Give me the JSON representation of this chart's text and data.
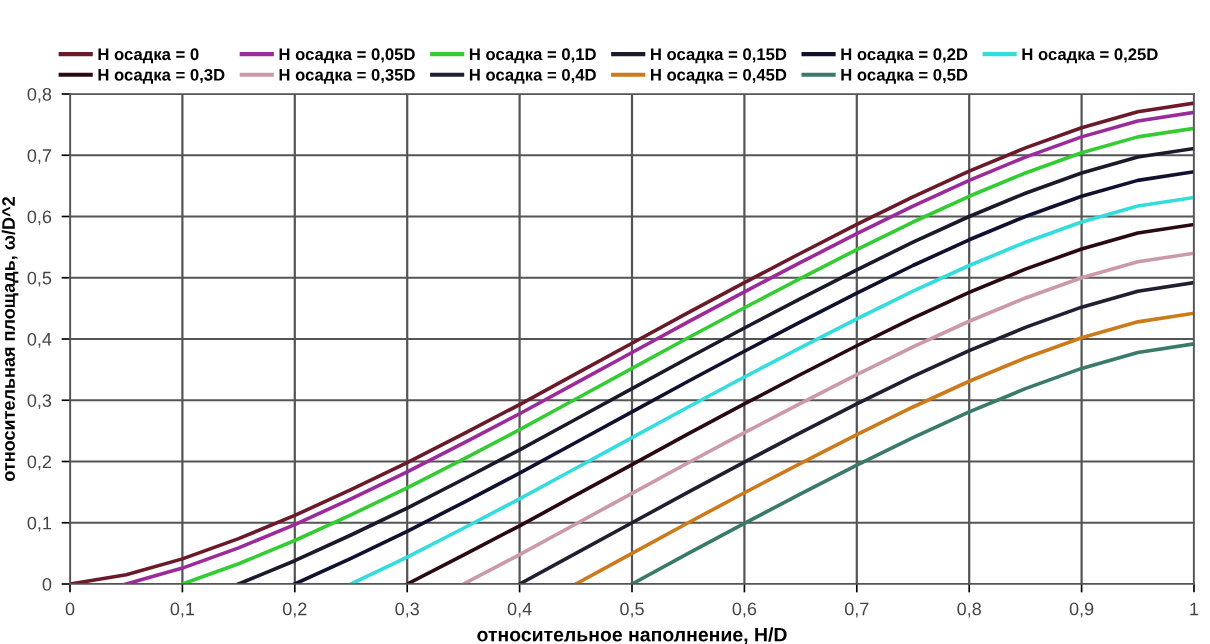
{
  "chart_data": {
    "type": "line",
    "xlabel": "относительное наполнение, H/D",
    "ylabel": "относительная площадь, ω/D^2",
    "xlim": [
      0,
      1
    ],
    "ylim": [
      0,
      0.8
    ],
    "xticks": [
      0,
      {
        "value": 0.1,
        "label": "0,1"
      },
      {
        "value": 0.2,
        "label": "0,2"
      },
      {
        "value": 0.3,
        "label": "0,3"
      },
      {
        "value": 0.4,
        "label": "0,4"
      },
      {
        "value": 0.5,
        "label": "0,5"
      },
      {
        "value": 0.6,
        "label": "0,6"
      },
      {
        "value": 0.7,
        "label": "0,7"
      },
      {
        "value": 0.8,
        "label": "0,8"
      },
      {
        "value": 0.9,
        "label": "0,9"
      },
      1
    ],
    "yticks": [
      0,
      {
        "value": 0.1,
        "label": "0,1"
      },
      {
        "value": 0.2,
        "label": "0,2"
      },
      {
        "value": 0.3,
        "label": "0,3"
      },
      {
        "value": 0.4,
        "label": "0,4"
      },
      {
        "value": 0.5,
        "label": "0,5"
      },
      {
        "value": 0.6,
        "label": "0,6"
      },
      {
        "value": 0.7,
        "label": "0,7"
      },
      {
        "value": 0.8,
        "label": "0,8"
      }
    ],
    "grid": true,
    "legend": "top",
    "marker": "none",
    "line_style": "solid",
    "series": [
      {
        "name": "H осадка = 0",
        "color": "#6b1a2a",
        "x": [
          0,
          0.05,
          0.1,
          0.15,
          0.2,
          0.25,
          0.3,
          0.35,
          0.4,
          0.45,
          0.5,
          0.55,
          0.6,
          0.65,
          0.7,
          0.75,
          0.8,
          0.85,
          0.9,
          0.95,
          1
        ],
        "values": [
          0,
          0.015,
          0.041,
          0.074,
          0.112,
          0.154,
          0.198,
          0.245,
          0.293,
          0.343,
          0.393,
          0.443,
          0.492,
          0.54,
          0.587,
          0.632,
          0.674,
          0.712,
          0.745,
          0.771,
          0.785
        ]
      },
      {
        "name": "H осадка = 0,05D",
        "color": "#9b2a9b",
        "x": [
          0.05,
          0.1,
          0.15,
          0.2,
          0.25,
          0.3,
          0.35,
          0.4,
          0.45,
          0.5,
          0.55,
          0.6,
          0.65,
          0.7,
          0.75,
          0.8,
          0.85,
          0.9,
          0.95,
          1
        ],
        "values": [
          0,
          0.026,
          0.059,
          0.097,
          0.139,
          0.183,
          0.23,
          0.278,
          0.328,
          0.378,
          0.428,
          0.477,
          0.525,
          0.572,
          0.617,
          0.659,
          0.697,
          0.73,
          0.756,
          0.77
        ]
      },
      {
        "name": "H осадка = 0,1D",
        "color": "#33cc33",
        "x": [
          0.1,
          0.15,
          0.2,
          0.25,
          0.3,
          0.35,
          0.4,
          0.45,
          0.5,
          0.55,
          0.6,
          0.65,
          0.7,
          0.75,
          0.8,
          0.85,
          0.9,
          0.95,
          1
        ],
        "values": [
          0,
          0.033,
          0.071,
          0.113,
          0.157,
          0.204,
          0.252,
          0.302,
          0.352,
          0.402,
          0.451,
          0.499,
          0.546,
          0.591,
          0.633,
          0.671,
          0.704,
          0.73,
          0.744
        ]
      },
      {
        "name": "H осадка = 0,15D",
        "color": "#1a1a2a",
        "x": [
          0.15,
          0.2,
          0.25,
          0.3,
          0.35,
          0.4,
          0.45,
          0.5,
          0.55,
          0.6,
          0.65,
          0.7,
          0.75,
          0.8,
          0.85,
          0.9,
          0.95,
          1
        ],
        "values": [
          0,
          0.038,
          0.08,
          0.124,
          0.171,
          0.219,
          0.269,
          0.319,
          0.369,
          0.418,
          0.466,
          0.513,
          0.558,
          0.6,
          0.638,
          0.671,
          0.697,
          0.711
        ]
      },
      {
        "name": "H осадка = 0,2D",
        "color": "#101030",
        "x": [
          0.2,
          0.25,
          0.3,
          0.35,
          0.4,
          0.45,
          0.5,
          0.55,
          0.6,
          0.65,
          0.7,
          0.75,
          0.8,
          0.85,
          0.9,
          0.95,
          1
        ],
        "values": [
          0,
          0.042,
          0.086,
          0.133,
          0.181,
          0.231,
          0.281,
          0.331,
          0.38,
          0.428,
          0.475,
          0.52,
          0.562,
          0.6,
          0.633,
          0.659,
          0.673
        ]
      },
      {
        "name": "H осадка = 0,25D",
        "color": "#33dddd",
        "x": [
          0.25,
          0.3,
          0.35,
          0.4,
          0.45,
          0.5,
          0.55,
          0.6,
          0.65,
          0.7,
          0.75,
          0.8,
          0.85,
          0.9,
          0.95,
          1
        ],
        "values": [
          0,
          0.044,
          0.091,
          0.139,
          0.189,
          0.239,
          0.289,
          0.338,
          0.386,
          0.433,
          0.478,
          0.52,
          0.558,
          0.591,
          0.617,
          0.631
        ]
      },
      {
        "name": "H осадка = 0,3D",
        "color": "#2a0a10",
        "x": [
          0.3,
          0.35,
          0.4,
          0.45,
          0.5,
          0.55,
          0.6,
          0.65,
          0.7,
          0.75,
          0.8,
          0.85,
          0.9,
          0.95,
          1
        ],
        "values": [
          0,
          0.047,
          0.095,
          0.145,
          0.195,
          0.245,
          0.294,
          0.342,
          0.389,
          0.434,
          0.476,
          0.514,
          0.547,
          0.573,
          0.587
        ]
      },
      {
        "name": "H осадка = 0,35D",
        "color": "#cc99aa",
        "x": [
          0.35,
          0.4,
          0.45,
          0.5,
          0.55,
          0.6,
          0.65,
          0.7,
          0.75,
          0.8,
          0.85,
          0.9,
          0.95,
          1
        ],
        "values": [
          0,
          0.048,
          0.098,
          0.148,
          0.198,
          0.247,
          0.295,
          0.342,
          0.387,
          0.429,
          0.467,
          0.5,
          0.526,
          0.54
        ]
      },
      {
        "name": "H осадка = 0,4D",
        "color": "#202030",
        "x": [
          0.4,
          0.45,
          0.5,
          0.55,
          0.6,
          0.65,
          0.7,
          0.75,
          0.8,
          0.85,
          0.9,
          0.95,
          1
        ],
        "values": [
          0,
          0.05,
          0.1,
          0.15,
          0.199,
          0.247,
          0.294,
          0.339,
          0.381,
          0.419,
          0.452,
          0.478,
          0.492
        ]
      },
      {
        "name": "H осадка = 0,45D",
        "color": "#cc7a1a",
        "x": [
          0.45,
          0.5,
          0.55,
          0.6,
          0.65,
          0.7,
          0.75,
          0.8,
          0.85,
          0.9,
          0.95,
          1
        ],
        "values": [
          0,
          0.05,
          0.1,
          0.149,
          0.197,
          0.244,
          0.289,
          0.331,
          0.369,
          0.402,
          0.428,
          0.442
        ]
      },
      {
        "name": "H осадка = 0,5D",
        "color": "#3a7a6a",
        "x": [
          0.5,
          0.55,
          0.6,
          0.65,
          0.7,
          0.75,
          0.8,
          0.85,
          0.9,
          0.95,
          1
        ],
        "values": [
          0,
          0.05,
          0.099,
          0.147,
          0.194,
          0.239,
          0.281,
          0.319,
          0.352,
          0.378,
          0.392
        ]
      }
    ]
  }
}
